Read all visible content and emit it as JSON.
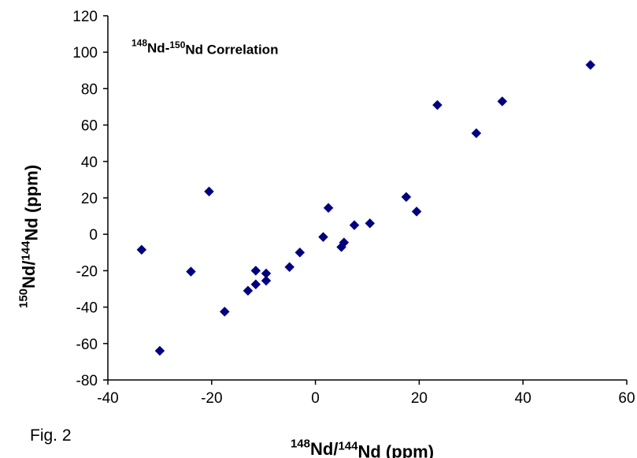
{
  "figure_label": "Fig. 2",
  "colors": {
    "marker": "#00007f",
    "axis": "#000000",
    "background": "#ffffff"
  },
  "chart_data": {
    "type": "scatter",
    "title": {
      "parts": [
        {
          "text": "148",
          "sup": true
        },
        {
          "text": "Nd-",
          "sup": false
        },
        {
          "text": "150",
          "sup": true
        },
        {
          "text": "Nd Correlation",
          "sup": false
        }
      ]
    },
    "xlabel": {
      "parts": [
        {
          "text": "148",
          "sup": true
        },
        {
          "text": "Nd/",
          "sup": false
        },
        {
          "text": "144",
          "sup": true
        },
        {
          "text": "Nd (ppm)",
          "sup": false
        }
      ]
    },
    "ylabel": {
      "parts": [
        {
          "text": "150",
          "sup": true
        },
        {
          "text": "Nd/",
          "sup": false
        },
        {
          "text": "144",
          "sup": true
        },
        {
          "text": "Nd (ppm)",
          "sup": false
        }
      ]
    },
    "xlim": [
      -40,
      60
    ],
    "ylim": [
      -80,
      120
    ],
    "xticks": [
      "-40",
      "-20",
      "0",
      "20",
      "40",
      "60"
    ],
    "yticks": [
      "-80",
      "-60",
      "-40",
      "-20",
      "0",
      "20",
      "40",
      "60",
      "80",
      "100",
      "120"
    ],
    "grid": false,
    "legend": "none",
    "marker": "diamond",
    "points": [
      {
        "x": -33.5,
        "y": -8.5
      },
      {
        "x": -30.0,
        "y": -64.0
      },
      {
        "x": -24.0,
        "y": -20.5
      },
      {
        "x": -20.5,
        "y": 23.5
      },
      {
        "x": -17.5,
        "y": -42.5
      },
      {
        "x": -13.0,
        "y": -31.0
      },
      {
        "x": -11.5,
        "y": -20.0
      },
      {
        "x": -11.5,
        "y": -27.5
      },
      {
        "x": -9.5,
        "y": -21.5
      },
      {
        "x": -9.5,
        "y": -25.5
      },
      {
        "x": -5.0,
        "y": -18.0
      },
      {
        "x": -3.0,
        "y": -10.0
      },
      {
        "x": 1.5,
        "y": -1.5
      },
      {
        "x": 2.5,
        "y": 14.5
      },
      {
        "x": 5.0,
        "y": -7.0
      },
      {
        "x": 5.5,
        "y": -4.5
      },
      {
        "x": 7.5,
        "y": 5.0
      },
      {
        "x": 10.5,
        "y": 6.0
      },
      {
        "x": 17.5,
        "y": 20.5
      },
      {
        "x": 19.5,
        "y": 12.5
      },
      {
        "x": 23.5,
        "y": 71.0
      },
      {
        "x": 31.0,
        "y": 55.5
      },
      {
        "x": 36.0,
        "y": 73.0
      },
      {
        "x": 53.0,
        "y": 93.0
      }
    ]
  }
}
